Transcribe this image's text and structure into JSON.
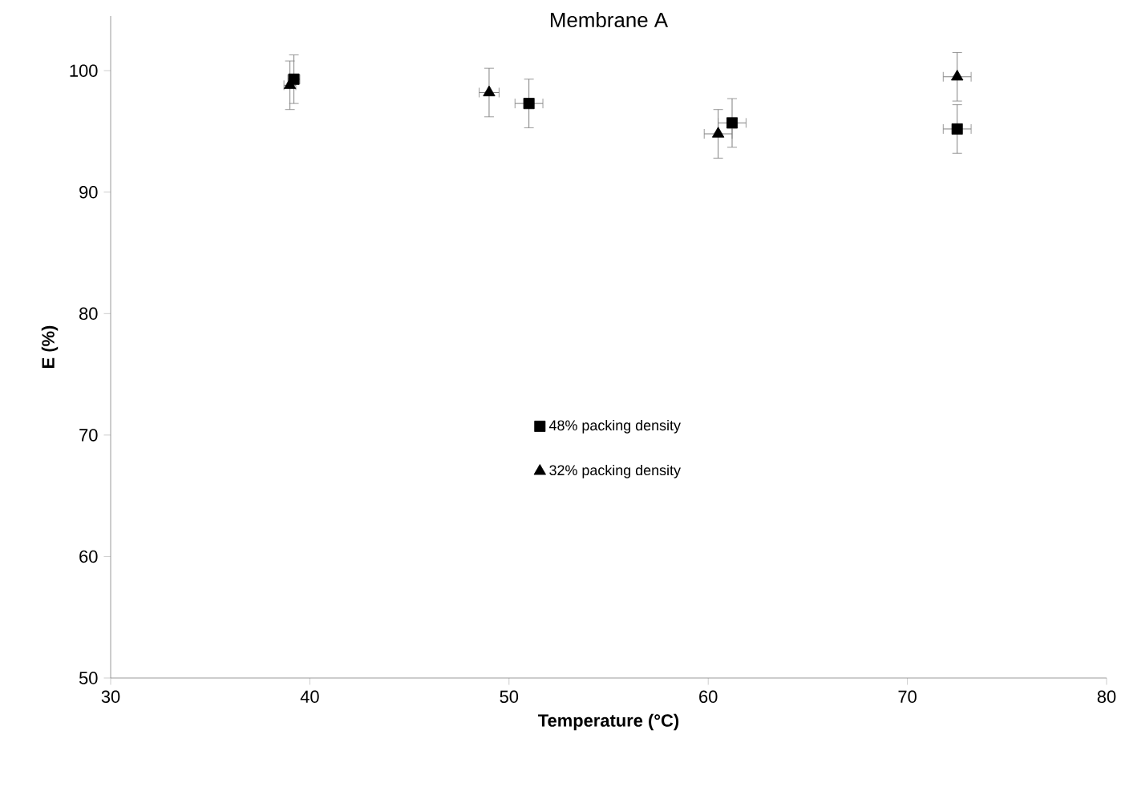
{
  "chart_data": {
    "type": "scatter",
    "title": "Membrane A",
    "xlabel": "Temperature (°C)",
    "ylabel": "E (%)",
    "xlim": [
      30,
      80
    ],
    "xticks": [
      30,
      40,
      50,
      60,
      70,
      80
    ],
    "ylim": [
      50,
      104.5
    ],
    "yticks": [
      50,
      60,
      70,
      80,
      90,
      100
    ],
    "grid": false,
    "legend": "center",
    "series": [
      {
        "name": "48% packing density",
        "color": "#000000",
        "marker": "square",
        "x": [
          39.2,
          51,
          61.2,
          72.5
        ],
        "values": [
          99.3,
          97.3,
          95.7,
          95.2
        ],
        "errors": [
          2,
          2,
          2,
          2
        ],
        "xerrors": [
          0.3,
          0.7,
          0.7,
          0.7
        ]
      },
      {
        "name": "32% packing density",
        "color": "#000000",
        "marker": "triangle",
        "x": [
          39,
          49,
          60.5,
          72.5
        ],
        "values": [
          98.8,
          98.2,
          94.8,
          99.5
        ],
        "errors": [
          2,
          2,
          2,
          2
        ],
        "xerrors": [
          0.3,
          0.5,
          0.7,
          0.7
        ]
      }
    ]
  }
}
